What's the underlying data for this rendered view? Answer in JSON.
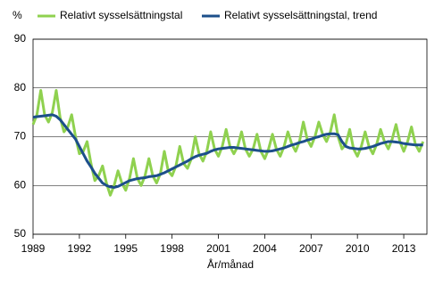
{
  "chart_data": {
    "type": "line",
    "y_unit_label": "%",
    "x_label": "År/månad",
    "x": [
      1989,
      1989.25,
      1989.5,
      1989.75,
      1990,
      1990.25,
      1990.5,
      1990.75,
      1991,
      1991.25,
      1991.5,
      1991.75,
      1992,
      1992.25,
      1992.5,
      1992.75,
      1993,
      1993.25,
      1993.5,
      1993.75,
      1994,
      1994.25,
      1994.5,
      1994.75,
      1995,
      1995.25,
      1995.5,
      1995.75,
      1996,
      1996.25,
      1996.5,
      1996.75,
      1997,
      1997.25,
      1997.5,
      1997.75,
      1998,
      1998.25,
      1998.5,
      1998.75,
      1999,
      1999.25,
      1999.5,
      1999.75,
      2000,
      2000.25,
      2000.5,
      2000.75,
      2001,
      2001.25,
      2001.5,
      2001.75,
      2002,
      2002.25,
      2002.5,
      2002.75,
      2003,
      2003.25,
      2003.5,
      2003.75,
      2004,
      2004.25,
      2004.5,
      2004.75,
      2005,
      2005.25,
      2005.5,
      2005.75,
      2006,
      2006.25,
      2006.5,
      2006.75,
      2007,
      2007.25,
      2007.5,
      2007.75,
      2008,
      2008.25,
      2008.5,
      2008.75,
      2009,
      2009.25,
      2009.5,
      2009.75,
      2010,
      2010.25,
      2010.5,
      2010.75,
      2011,
      2011.25,
      2011.5,
      2011.75,
      2012,
      2012.25,
      2012.5,
      2012.75,
      2013,
      2013.25,
      2013.5,
      2013.75,
      2014,
      2014.25
    ],
    "series": [
      {
        "name": "Relativt sysselsättningstal",
        "color": "#8fd14f",
        "values": [
          72.5,
          74.5,
          79.5,
          74.5,
          73,
          75,
          79.5,
          74,
          71,
          72,
          74.5,
          70,
          66.5,
          67,
          69,
          64.5,
          61,
          62,
          64,
          60.5,
          58,
          60,
          63,
          60.5,
          59,
          61.5,
          65.5,
          61.5,
          60,
          62,
          65.5,
          62,
          60.5,
          62.5,
          67,
          63,
          62,
          64,
          68,
          64.5,
          63.5,
          65.5,
          70,
          66.5,
          65,
          67,
          71,
          67.5,
          66,
          68,
          71.5,
          68,
          66.5,
          68,
          71,
          67.5,
          66,
          67.5,
          70.5,
          67,
          65.5,
          67.5,
          70.5,
          67.5,
          66,
          68,
          71,
          68.5,
          67,
          69,
          73,
          69.5,
          68,
          70,
          73,
          70.5,
          69,
          71,
          74.5,
          70,
          67.5,
          68.5,
          71.5,
          67.5,
          66,
          68,
          71,
          68,
          66.5,
          68.5,
          71.5,
          69,
          67.5,
          69.5,
          72.5,
          69,
          67,
          69,
          72,
          68.5,
          67,
          69
        ]
      },
      {
        "name": "Relativt sysselsättningstal, trend",
        "color": "#1c4f8a",
        "values": [
          74,
          74.1,
          74.2,
          74.3,
          74.4,
          74.5,
          74.2,
          73.5,
          72.5,
          71.5,
          70.5,
          69.5,
          68,
          66.5,
          65,
          63.8,
          62.5,
          61.5,
          60.5,
          60,
          59.7,
          59.6,
          59.8,
          60.2,
          60.6,
          61,
          61.2,
          61.4,
          61.5,
          61.6,
          61.8,
          61.9,
          62,
          62.3,
          62.6,
          63,
          63.4,
          63.8,
          64.2,
          64.6,
          65,
          65.5,
          65.9,
          66.2,
          66.4,
          66.6,
          67,
          67.3,
          67.5,
          67.6,
          67.7,
          67.8,
          67.8,
          67.7,
          67.6,
          67.5,
          67.4,
          67.3,
          67.2,
          67.1,
          67,
          67,
          67.1,
          67.3,
          67.5,
          67.7,
          68,
          68.3,
          68.5,
          68.8,
          69,
          69.3,
          69.5,
          69.8,
          70,
          70.3,
          70.5,
          70.6,
          70.6,
          70.4,
          69,
          68,
          67.7,
          67.6,
          67.5,
          67.5,
          67.6,
          67.8,
          68,
          68.3,
          68.6,
          68.8,
          69,
          69,
          68.9,
          68.8,
          68.6,
          68.5,
          68.4,
          68.3,
          68.3,
          68.3
        ]
      }
    ],
    "xlim": [
      1989,
      2014.5
    ],
    "xticks": [
      1989,
      1992,
      1995,
      1998,
      2001,
      2004,
      2007,
      2010,
      2013
    ],
    "ylim": [
      50,
      90
    ],
    "yticks": [
      50,
      60,
      70,
      80,
      90
    ],
    "grid": true
  }
}
